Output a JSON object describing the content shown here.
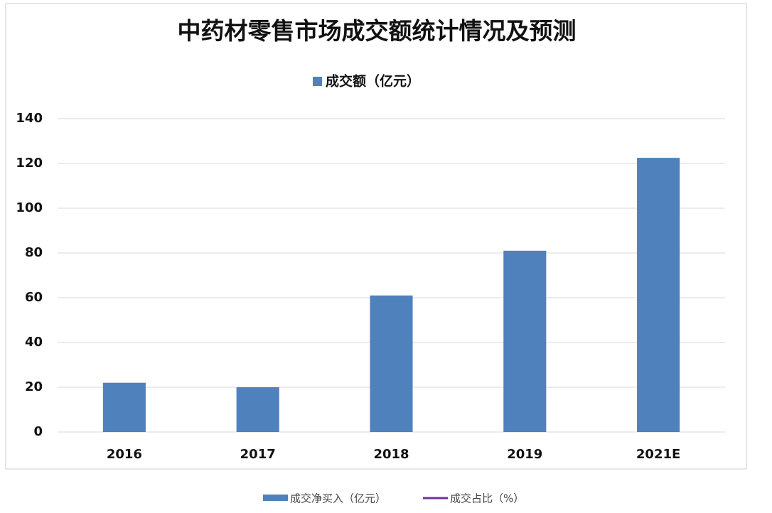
{
  "chart_data": {
    "type": "bar",
    "title": "中药材零售市场成交额统计情况及预测",
    "categories": [
      "2016",
      "2017",
      "2018",
      "2019",
      "2021E"
    ],
    "series": [
      {
        "name": "成交额（亿元）",
        "color": "#4f81bd",
        "values": [
          22,
          20,
          61,
          81,
          122.5
        ]
      }
    ],
    "ylim": [
      0,
      140
    ],
    "yticks": [
      0,
      20,
      40,
      60,
      80,
      100,
      120,
      140
    ],
    "grid": true,
    "legend": "top",
    "background_legend": [
      {
        "name": "成交净买入（亿元）",
        "color": "#4f81bd"
      },
      {
        "name": "成交占比（%）",
        "color": "#7030a0"
      }
    ]
  }
}
